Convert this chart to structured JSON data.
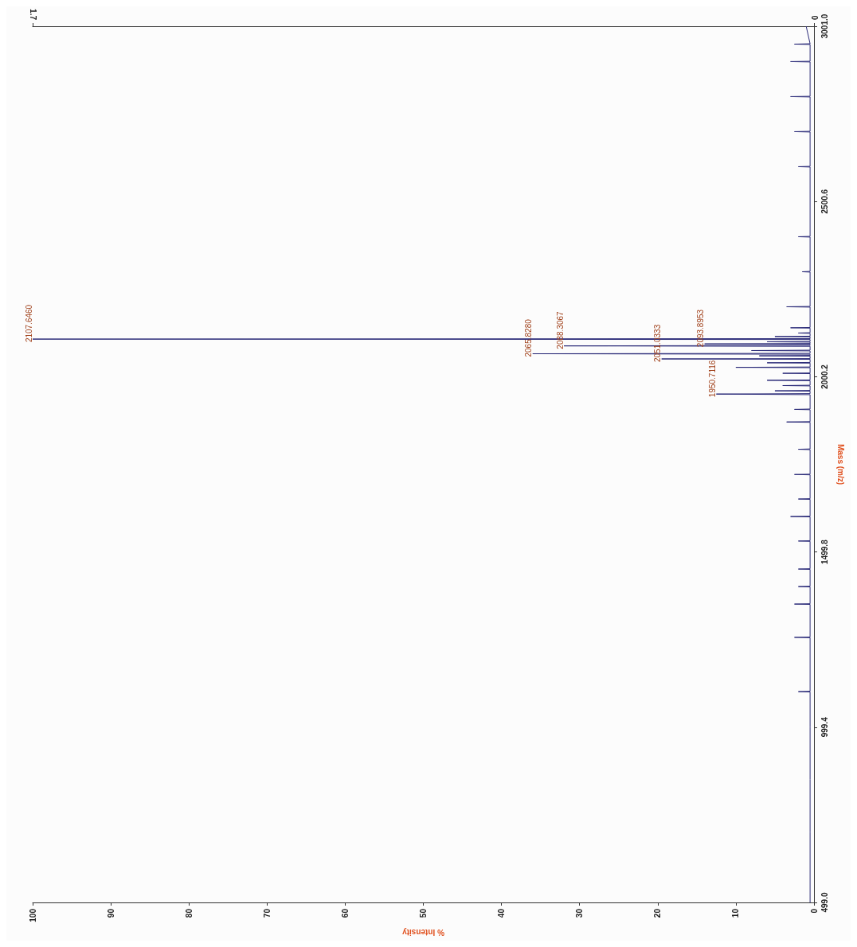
{
  "chart_data": {
    "type": "line",
    "orientation": "horizontal",
    "xlabel": "% Intensity",
    "ylabel": "Mass (m/z)",
    "xlim": [
      100,
      0
    ],
    "xticks": [
      0,
      10,
      20,
      30,
      40,
      50,
      60,
      70,
      80,
      90,
      100
    ],
    "x2lim": [
      1.7,
      0
    ],
    "x2ticks": [
      0,
      1.7
    ],
    "ylim": [
      499.0,
      3001.0
    ],
    "yticks": [
      {
        "value": 499.0,
        "label": "499.0"
      },
      {
        "value": 999.4,
        "label": "999.4"
      },
      {
        "value": 1499.8,
        "label": "1499.8"
      },
      {
        "value": 2000.2,
        "label": "2000.2"
      },
      {
        "value": 2500.6,
        "label": "2500.6"
      },
      {
        "value": 3001.0,
        "label": "3001.0"
      }
    ],
    "grid": false,
    "marker": "none",
    "line_style": "solid",
    "series": [
      {
        "color": "#2a2a78",
        "x": [
          499,
          700,
          850,
          1000,
          1100,
          1101,
          1102,
          1255,
          1256,
          1257,
          1350,
          1351,
          1352,
          1400,
          1401,
          1402,
          1450,
          1451,
          1452,
          1530,
          1531,
          1532,
          1600,
          1601,
          1602,
          1650,
          1651,
          1652,
          1720,
          1721,
          1722,
          1792,
          1793,
          1794,
          1870,
          1871,
          1872,
          1906,
          1907,
          1908,
          1949,
          1950.7116,
          1952,
          1959,
          1960,
          1961,
          1974,
          1975,
          1976,
          1989,
          1990,
          1991,
          2009,
          2010,
          2011,
          2026,
          2027,
          2028,
          2039,
          2040,
          2041,
          2050,
          2051.0333,
          2052,
          2059,
          2060,
          2061,
          2064.5,
          2065.828,
          2067,
          2074,
          2075,
          2076,
          2087,
          2088.3067,
          2089.5,
          2093,
          2093.8953,
          2095,
          2099,
          2100,
          2101,
          2106.5,
          2107.646,
          2109,
          2114,
          2115,
          2116,
          2124,
          2125,
          2126,
          2139,
          2140,
          2141,
          2199,
          2200,
          2201,
          2299,
          2300,
          2301,
          2399,
          2400,
          2401,
          2599,
          2600,
          2601,
          2699,
          2700,
          2701,
          2799,
          2800,
          2801,
          2899,
          2900,
          2901,
          2949,
          2950,
          2951,
          3001
        ],
        "values": [
          0.5,
          0.5,
          0.5,
          0.5,
          0.5,
          2,
          0.5,
          0.5,
          2.5,
          0.5,
          0.5,
          2.5,
          0.5,
          0.5,
          2,
          0.5,
          0.5,
          2,
          0.5,
          0.5,
          2,
          0.5,
          0.5,
          3,
          0.5,
          0.5,
          2,
          0.5,
          0.5,
          2.5,
          0.5,
          0.5,
          2,
          0.5,
          0.5,
          3.5,
          0.5,
          0.5,
          2.5,
          0.5,
          0.5,
          12.5,
          0.5,
          0.5,
          5,
          0.5,
          0.5,
          4,
          0.5,
          0.5,
          6,
          0.5,
          0.5,
          4,
          0.5,
          0.5,
          10,
          0.5,
          0.5,
          6,
          0.5,
          0.5,
          19.5,
          0.5,
          0.5,
          7,
          0.5,
          0.5,
          36,
          0.5,
          0.5,
          8,
          0.5,
          0.5,
          32,
          0.5,
          0.5,
          14,
          0.5,
          0.5,
          6,
          0.5,
          0.5,
          100,
          0.5,
          0.5,
          5,
          0.5,
          0.5,
          2,
          0.5,
          0.5,
          3,
          0.5,
          0.5,
          3.5,
          0.5,
          0.5,
          1.5,
          0.5,
          0.5,
          2,
          0.5,
          0.5,
          2,
          0.5,
          0.5,
          2.5,
          0.5,
          0.5,
          3,
          0.5,
          0.5,
          3,
          0.5,
          0.5,
          2.5,
          0.5,
          1
        ]
      }
    ],
    "annotations": [
      {
        "text": "2107.6460",
        "x": 100,
        "y": 2107.646
      },
      {
        "text": "2088.3067",
        "x": 32,
        "y": 2088.3067
      },
      {
        "text": "2065.8280",
        "x": 36,
        "y": 2065.828
      },
      {
        "text": "2051.0333",
        "x": 19.5,
        "y": 2051.0333
      },
      {
        "text": "2093.8953",
        "x": 14,
        "y": 2093.8953
      },
      {
        "text": "1950.7116",
        "x": 12.5,
        "y": 1950.7116
      }
    ]
  }
}
